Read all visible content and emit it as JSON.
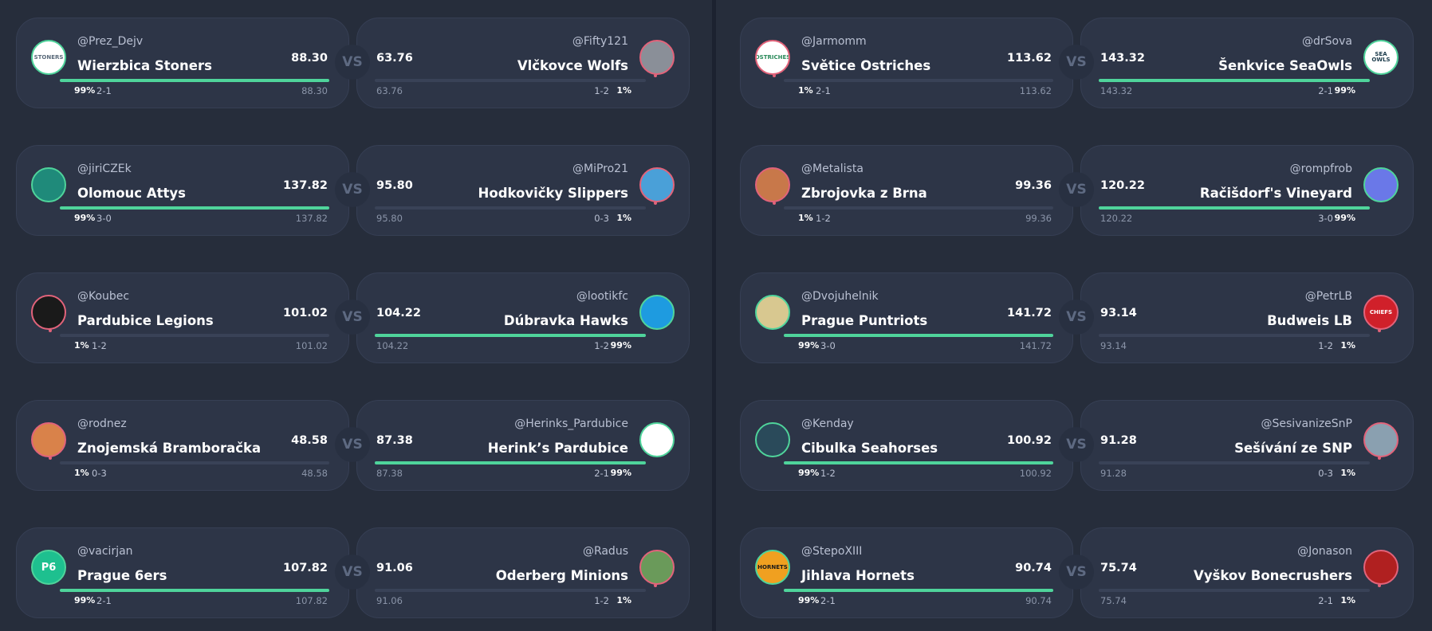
{
  "vs_label": "VS",
  "columns": [
    {
      "matchups": [
        {
          "home": {
            "user": "@Prez_Dejv",
            "team": "Wierzbica Stoners",
            "score": "88.30",
            "prob": "99%",
            "record": "2-1",
            "pts": "88.30",
            "winner": true,
            "logo_text": "STONERS",
            "logo_icon": "stoners-logo-icon",
            "logo_bg": "#ffffff",
            "logo_fg": "#5a6a7a"
          },
          "away": {
            "user": "@Fifty121",
            "team": "Vlčkovce Wolfs",
            "score": "63.76",
            "prob": "1%",
            "record": "1-2",
            "pts": "63.76",
            "winner": false,
            "logo_text": "",
            "logo_icon": "wolf-logo-icon",
            "logo_bg": "#8a8f98",
            "logo_fg": "#ffffff"
          }
        },
        {
          "home": {
            "user": "@jiriCZEk",
            "team": "Olomouc Attys",
            "score": "137.82",
            "prob": "99%",
            "record": "3-0",
            "pts": "137.82",
            "winner": true,
            "logo_text": "",
            "logo_icon": "attys-logo-icon",
            "logo_bg": "#1f8a7a",
            "logo_fg": "#ffffff"
          },
          "away": {
            "user": "@MiPro21",
            "team": "Hodkovičky Slippers",
            "score": "95.80",
            "prob": "1%",
            "record": "0-3",
            "pts": "95.80",
            "winner": false,
            "logo_text": "",
            "logo_icon": "rooster-logo-icon",
            "logo_bg": "#4aa0d8",
            "logo_fg": "#e8623a"
          }
        },
        {
          "home": {
            "user": "@Koubec",
            "team": "Pardubice Legions",
            "score": "101.02",
            "prob": "1%",
            "record": "1-2",
            "pts": "101.02",
            "winner": false,
            "logo_text": "",
            "logo_icon": "spartan-logo-icon",
            "logo_bg": "#1a1a1a",
            "logo_fg": "#c0392b"
          },
          "away": {
            "user": "@lootikfc",
            "team": "Dúbravka Hawks",
            "score": "104.22",
            "prob": "99%",
            "record": "1-2",
            "pts": "104.22",
            "winner": true,
            "logo_text": "",
            "logo_icon": "robot-logo-icon",
            "logo_bg": "#1e9be0",
            "logo_fg": "#ffffff"
          }
        },
        {
          "home": {
            "user": "@rodnez",
            "team": "Znojemská Bramboračka",
            "score": "48.58",
            "prob": "1%",
            "record": "0-3",
            "pts": "48.58",
            "winner": false,
            "logo_text": "",
            "logo_icon": "chef-logo-icon",
            "logo_bg": "#d9824a",
            "logo_fg": "#3a7a3a"
          },
          "away": {
            "user": "@Herinks_Pardubice",
            "team": "Herink’s Pardubice",
            "score": "87.38",
            "prob": "99%",
            "record": "2-1",
            "pts": "87.38",
            "winner": true,
            "logo_text": "",
            "logo_icon": "shark-logo-icon",
            "logo_bg": "#ffffff",
            "logo_fg": "#2a6aa8"
          }
        },
        {
          "home": {
            "user": "@vacirjan",
            "team": "Prague 6ers",
            "score": "107.82",
            "prob": "99%",
            "record": "2-1",
            "pts": "107.82",
            "winner": true,
            "logo_text": "P6",
            "logo_icon": "p6-logo-icon",
            "logo_bg": "#1ec08f",
            "logo_fg": "#ffffff"
          },
          "away": {
            "user": "@Radus",
            "team": "Oderberg Minions",
            "score": "91.06",
            "prob": "1%",
            "record": "1-2",
            "pts": "91.06",
            "winner": false,
            "logo_text": "",
            "logo_icon": "minion-logo-icon",
            "logo_bg": "#6a9a5a",
            "logo_fg": "#f0d040"
          }
        }
      ]
    },
    {
      "matchups": [
        {
          "home": {
            "user": "@Jarmomm",
            "team": "Světice Ostriches",
            "score": "113.62",
            "prob": "1%",
            "record": "2-1",
            "pts": "113.62",
            "winner": false,
            "logo_text": "OSTRICHES",
            "logo_icon": "ostrich-logo-icon",
            "logo_bg": "#ffffff",
            "logo_fg": "#2a8a5a"
          },
          "away": {
            "user": "@drSova",
            "team": "Šenkvice SeaOwls",
            "score": "143.32",
            "prob": "99%",
            "record": "2-1",
            "pts": "143.32",
            "winner": true,
            "logo_text": "SEA OWLS",
            "logo_icon": "owl-logo-icon",
            "logo_bg": "#ffffff",
            "logo_fg": "#1a3a4a"
          }
        },
        {
          "home": {
            "user": "@Metalista",
            "team": "Zbrojovka z Brna",
            "score": "99.36",
            "prob": "1%",
            "record": "1-2",
            "pts": "99.36",
            "winner": false,
            "logo_text": "",
            "logo_icon": "metal-logo-icon",
            "logo_bg": "#c8784a",
            "logo_fg": "#ffffff"
          },
          "away": {
            "user": "@rompfrob",
            "team": "Račišdorf's Vineyard",
            "score": "120.22",
            "prob": "99%",
            "record": "3-0",
            "pts": "120.22",
            "winner": true,
            "logo_text": "",
            "logo_icon": "bot-logo-icon",
            "logo_bg": "#6a78e8",
            "logo_fg": "#ffffff"
          }
        },
        {
          "home": {
            "user": "@Dvojuhelnik",
            "team": "Prague Puntriots",
            "score": "141.72",
            "prob": "99%",
            "record": "3-0",
            "pts": "141.72",
            "winner": true,
            "logo_text": "",
            "logo_icon": "puntriots-logo-icon",
            "logo_bg": "#d8c890",
            "logo_fg": "#3a3a2a"
          },
          "away": {
            "user": "@PetrLB",
            "team": "Budweis LB",
            "score": "93.14",
            "prob": "1%",
            "record": "1-2",
            "pts": "93.14",
            "winner": false,
            "logo_text": "CHIEFS",
            "logo_icon": "chiefs-logo-icon",
            "logo_bg": "#d0202a",
            "logo_fg": "#ffffff"
          }
        },
        {
          "home": {
            "user": "@Kenday",
            "team": "Cibulka Seahorses",
            "score": "100.92",
            "prob": "99%",
            "record": "1-2",
            "pts": "100.92",
            "winner": true,
            "logo_text": "",
            "logo_icon": "seahorse-logo-icon",
            "logo_bg": "#2a4a5a",
            "logo_fg": "#ffffff"
          },
          "away": {
            "user": "@SesivanizeSnP",
            "team": "Sešívání ze SNP",
            "score": "91.28",
            "prob": "1%",
            "record": "0-3",
            "pts": "91.28",
            "winner": false,
            "logo_text": "",
            "logo_icon": "photo-logo-icon",
            "logo_bg": "#8aa0b0",
            "logo_fg": "#2a3a4a"
          }
        },
        {
          "home": {
            "user": "@StepoXIII",
            "team": "Jihlava Hornets",
            "score": "90.74",
            "prob": "99%",
            "record": "2-1",
            "pts": "90.74",
            "winner": true,
            "logo_text": "HORNETS",
            "logo_icon": "hornet-logo-icon",
            "logo_bg": "#f0a020",
            "logo_fg": "#1a1a1a"
          },
          "away": {
            "user": "@Jonason",
            "team": "Vyškov Bonecrushers",
            "score": "75.74",
            "prob": "1%",
            "record": "2-1",
            "pts": "75.74",
            "winner": false,
            "logo_text": "",
            "logo_icon": "skull-logo-icon",
            "logo_bg": "#b02020",
            "logo_fg": "#ffffff"
          }
        }
      ]
    }
  ]
}
